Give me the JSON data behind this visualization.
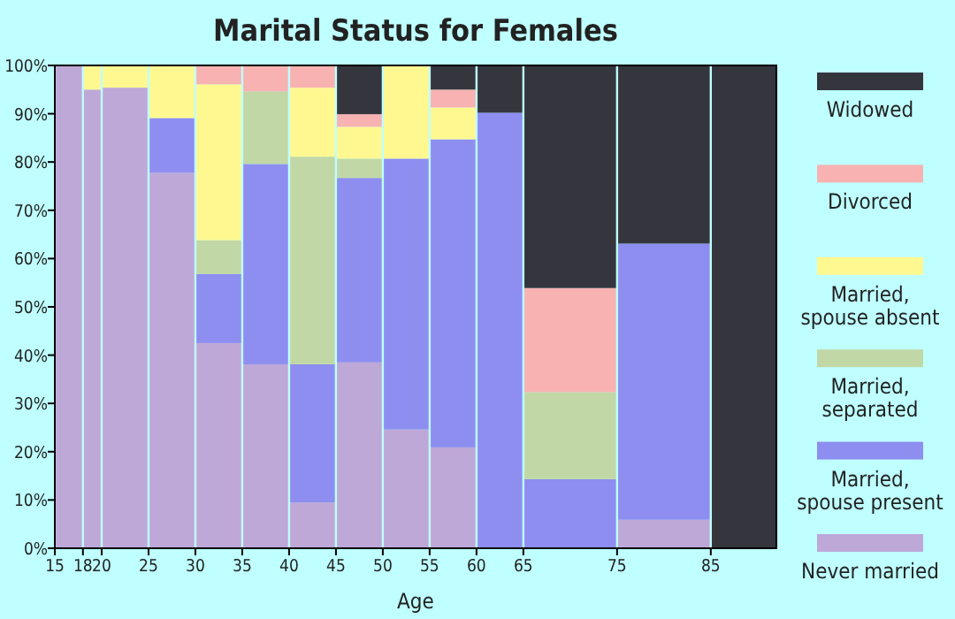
{
  "chart_data": {
    "type": "bar",
    "title": "Marital Status for Females",
    "xlabel": "Age",
    "stacked": true,
    "x": [
      16.5,
      19,
      22.5,
      27.5,
      32.5,
      37.5,
      42.5,
      47.5,
      52.5,
      57.5,
      62.5,
      70,
      80,
      88.5
    ],
    "xlim": [
      15,
      92
    ],
    "xticks": [
      15,
      18,
      20,
      25,
      30,
      35,
      40,
      45,
      50,
      55,
      60,
      65,
      75,
      85
    ],
    "ylim": [
      0,
      100
    ],
    "yticks": [
      {
        "value": 0,
        "label": "0%"
      },
      {
        "value": 10,
        "label": "10%"
      },
      {
        "value": 20,
        "label": "20%"
      },
      {
        "value": 30,
        "label": "30%"
      },
      {
        "value": 40,
        "label": "40%"
      },
      {
        "value": 50,
        "label": "50%"
      },
      {
        "value": 60,
        "label": "60%"
      },
      {
        "value": 70,
        "label": "70%"
      },
      {
        "value": 80,
        "label": "80%"
      },
      {
        "value": 90,
        "label": "90%"
      },
      {
        "value": 100,
        "label": "100%"
      }
    ],
    "grid": "x",
    "legend": "right",
    "series": [
      {
        "name": "Never married",
        "color": "#bea8d8",
        "values": [
          100,
          95.0,
          95.4,
          77.8,
          42.5,
          38.1,
          9.5,
          38.5,
          24.6,
          20.9,
          0,
          0,
          5.9,
          0
        ]
      },
      {
        "name": "Married, spouse present",
        "color": "#8e8ef0",
        "values": [
          0,
          0,
          0,
          11.3,
          14.3,
          41.5,
          28.6,
          38.2,
          56.1,
          63.8,
          90.2,
          14.3,
          57.2,
          0
        ]
      },
      {
        "name": "Married, separated",
        "color": "#c1d8a6",
        "values": [
          0,
          0,
          0,
          0,
          7.0,
          15.0,
          43.0,
          4.0,
          0,
          0,
          0,
          18.0,
          0,
          0
        ]
      },
      {
        "name": "Married, spouse absent",
        "color": "#fff891",
        "values": [
          0,
          5.0,
          4.6,
          10.9,
          32.3,
          0,
          14.3,
          6.6,
          19.3,
          6.6,
          0,
          0,
          0,
          0
        ]
      },
      {
        "name": "Divorced",
        "color": "#f8b2b2",
        "values": [
          0,
          0,
          0,
          0,
          3.9,
          5.4,
          4.6,
          2.6,
          0,
          3.7,
          0,
          21.6,
          0,
          0
        ]
      },
      {
        "name": "Widowed",
        "color": "#35363d",
        "values": [
          0,
          0,
          0,
          0,
          0,
          0,
          0,
          10.1,
          0,
          5.0,
          9.8,
          46.1,
          36.9,
          100
        ]
      }
    ]
  }
}
